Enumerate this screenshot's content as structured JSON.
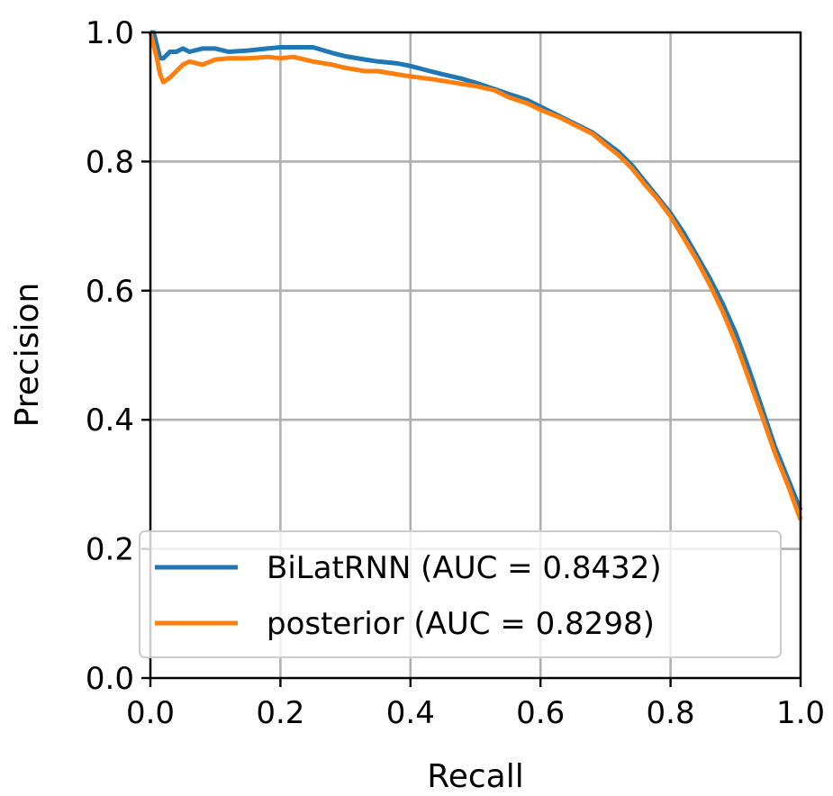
{
  "chart_data": {
    "type": "line",
    "title": "",
    "xlabel": "Recall",
    "ylabel": "Precision",
    "xlim": [
      0.0,
      1.0
    ],
    "ylim": [
      0.0,
      1.0
    ],
    "xticks": [
      "0.0",
      "0.2",
      "0.4",
      "0.6",
      "0.8",
      "1.0"
    ],
    "yticks": [
      "0.0",
      "0.2",
      "0.4",
      "0.6",
      "0.8",
      "1.0"
    ],
    "grid": true,
    "legend_position": "lower-left",
    "series": [
      {
        "name": "BiLatRNN (AUC = 0.8432)",
        "color": "#1f77b4",
        "x": [
          0.0,
          0.005,
          0.01,
          0.015,
          0.02,
          0.03,
          0.04,
          0.05,
          0.06,
          0.08,
          0.1,
          0.12,
          0.15,
          0.18,
          0.2,
          0.22,
          0.25,
          0.28,
          0.3,
          0.33,
          0.35,
          0.38,
          0.4,
          0.43,
          0.45,
          0.48,
          0.5,
          0.53,
          0.55,
          0.58,
          0.6,
          0.63,
          0.65,
          0.68,
          0.7,
          0.72,
          0.74,
          0.76,
          0.78,
          0.8,
          0.82,
          0.84,
          0.86,
          0.88,
          0.9,
          0.92,
          0.94,
          0.96,
          0.98,
          1.0
        ],
        "y": [
          1.0,
          1.0,
          0.98,
          0.96,
          0.96,
          0.97,
          0.97,
          0.975,
          0.97,
          0.975,
          0.975,
          0.97,
          0.972,
          0.975,
          0.977,
          0.977,
          0.977,
          0.968,
          0.963,
          0.958,
          0.955,
          0.952,
          0.948,
          0.94,
          0.935,
          0.928,
          0.922,
          0.912,
          0.905,
          0.895,
          0.885,
          0.87,
          0.86,
          0.845,
          0.83,
          0.815,
          0.795,
          0.77,
          0.745,
          0.72,
          0.69,
          0.655,
          0.62,
          0.58,
          0.535,
          0.48,
          0.42,
          0.36,
          0.31,
          0.26
        ]
      },
      {
        "name": "posterior (AUC = 0.8298)",
        "color": "#ff7f0e",
        "x": [
          0.0,
          0.005,
          0.01,
          0.015,
          0.02,
          0.03,
          0.04,
          0.05,
          0.06,
          0.08,
          0.1,
          0.12,
          0.15,
          0.18,
          0.2,
          0.22,
          0.25,
          0.28,
          0.3,
          0.33,
          0.35,
          0.38,
          0.4,
          0.43,
          0.45,
          0.48,
          0.5,
          0.53,
          0.55,
          0.58,
          0.6,
          0.63,
          0.65,
          0.68,
          0.7,
          0.72,
          0.74,
          0.76,
          0.78,
          0.8,
          0.82,
          0.84,
          0.86,
          0.88,
          0.9,
          0.92,
          0.94,
          0.96,
          0.98,
          1.0
        ],
        "y": [
          1.0,
          0.98,
          0.96,
          0.935,
          0.923,
          0.93,
          0.94,
          0.95,
          0.955,
          0.95,
          0.958,
          0.96,
          0.96,
          0.962,
          0.96,
          0.962,
          0.955,
          0.95,
          0.945,
          0.94,
          0.94,
          0.935,
          0.932,
          0.928,
          0.925,
          0.92,
          0.917,
          0.91,
          0.9,
          0.89,
          0.88,
          0.868,
          0.858,
          0.843,
          0.826,
          0.81,
          0.79,
          0.765,
          0.742,
          0.715,
          0.682,
          0.648,
          0.61,
          0.568,
          0.52,
          0.465,
          0.408,
          0.35,
          0.3,
          0.245
        ]
      }
    ]
  }
}
